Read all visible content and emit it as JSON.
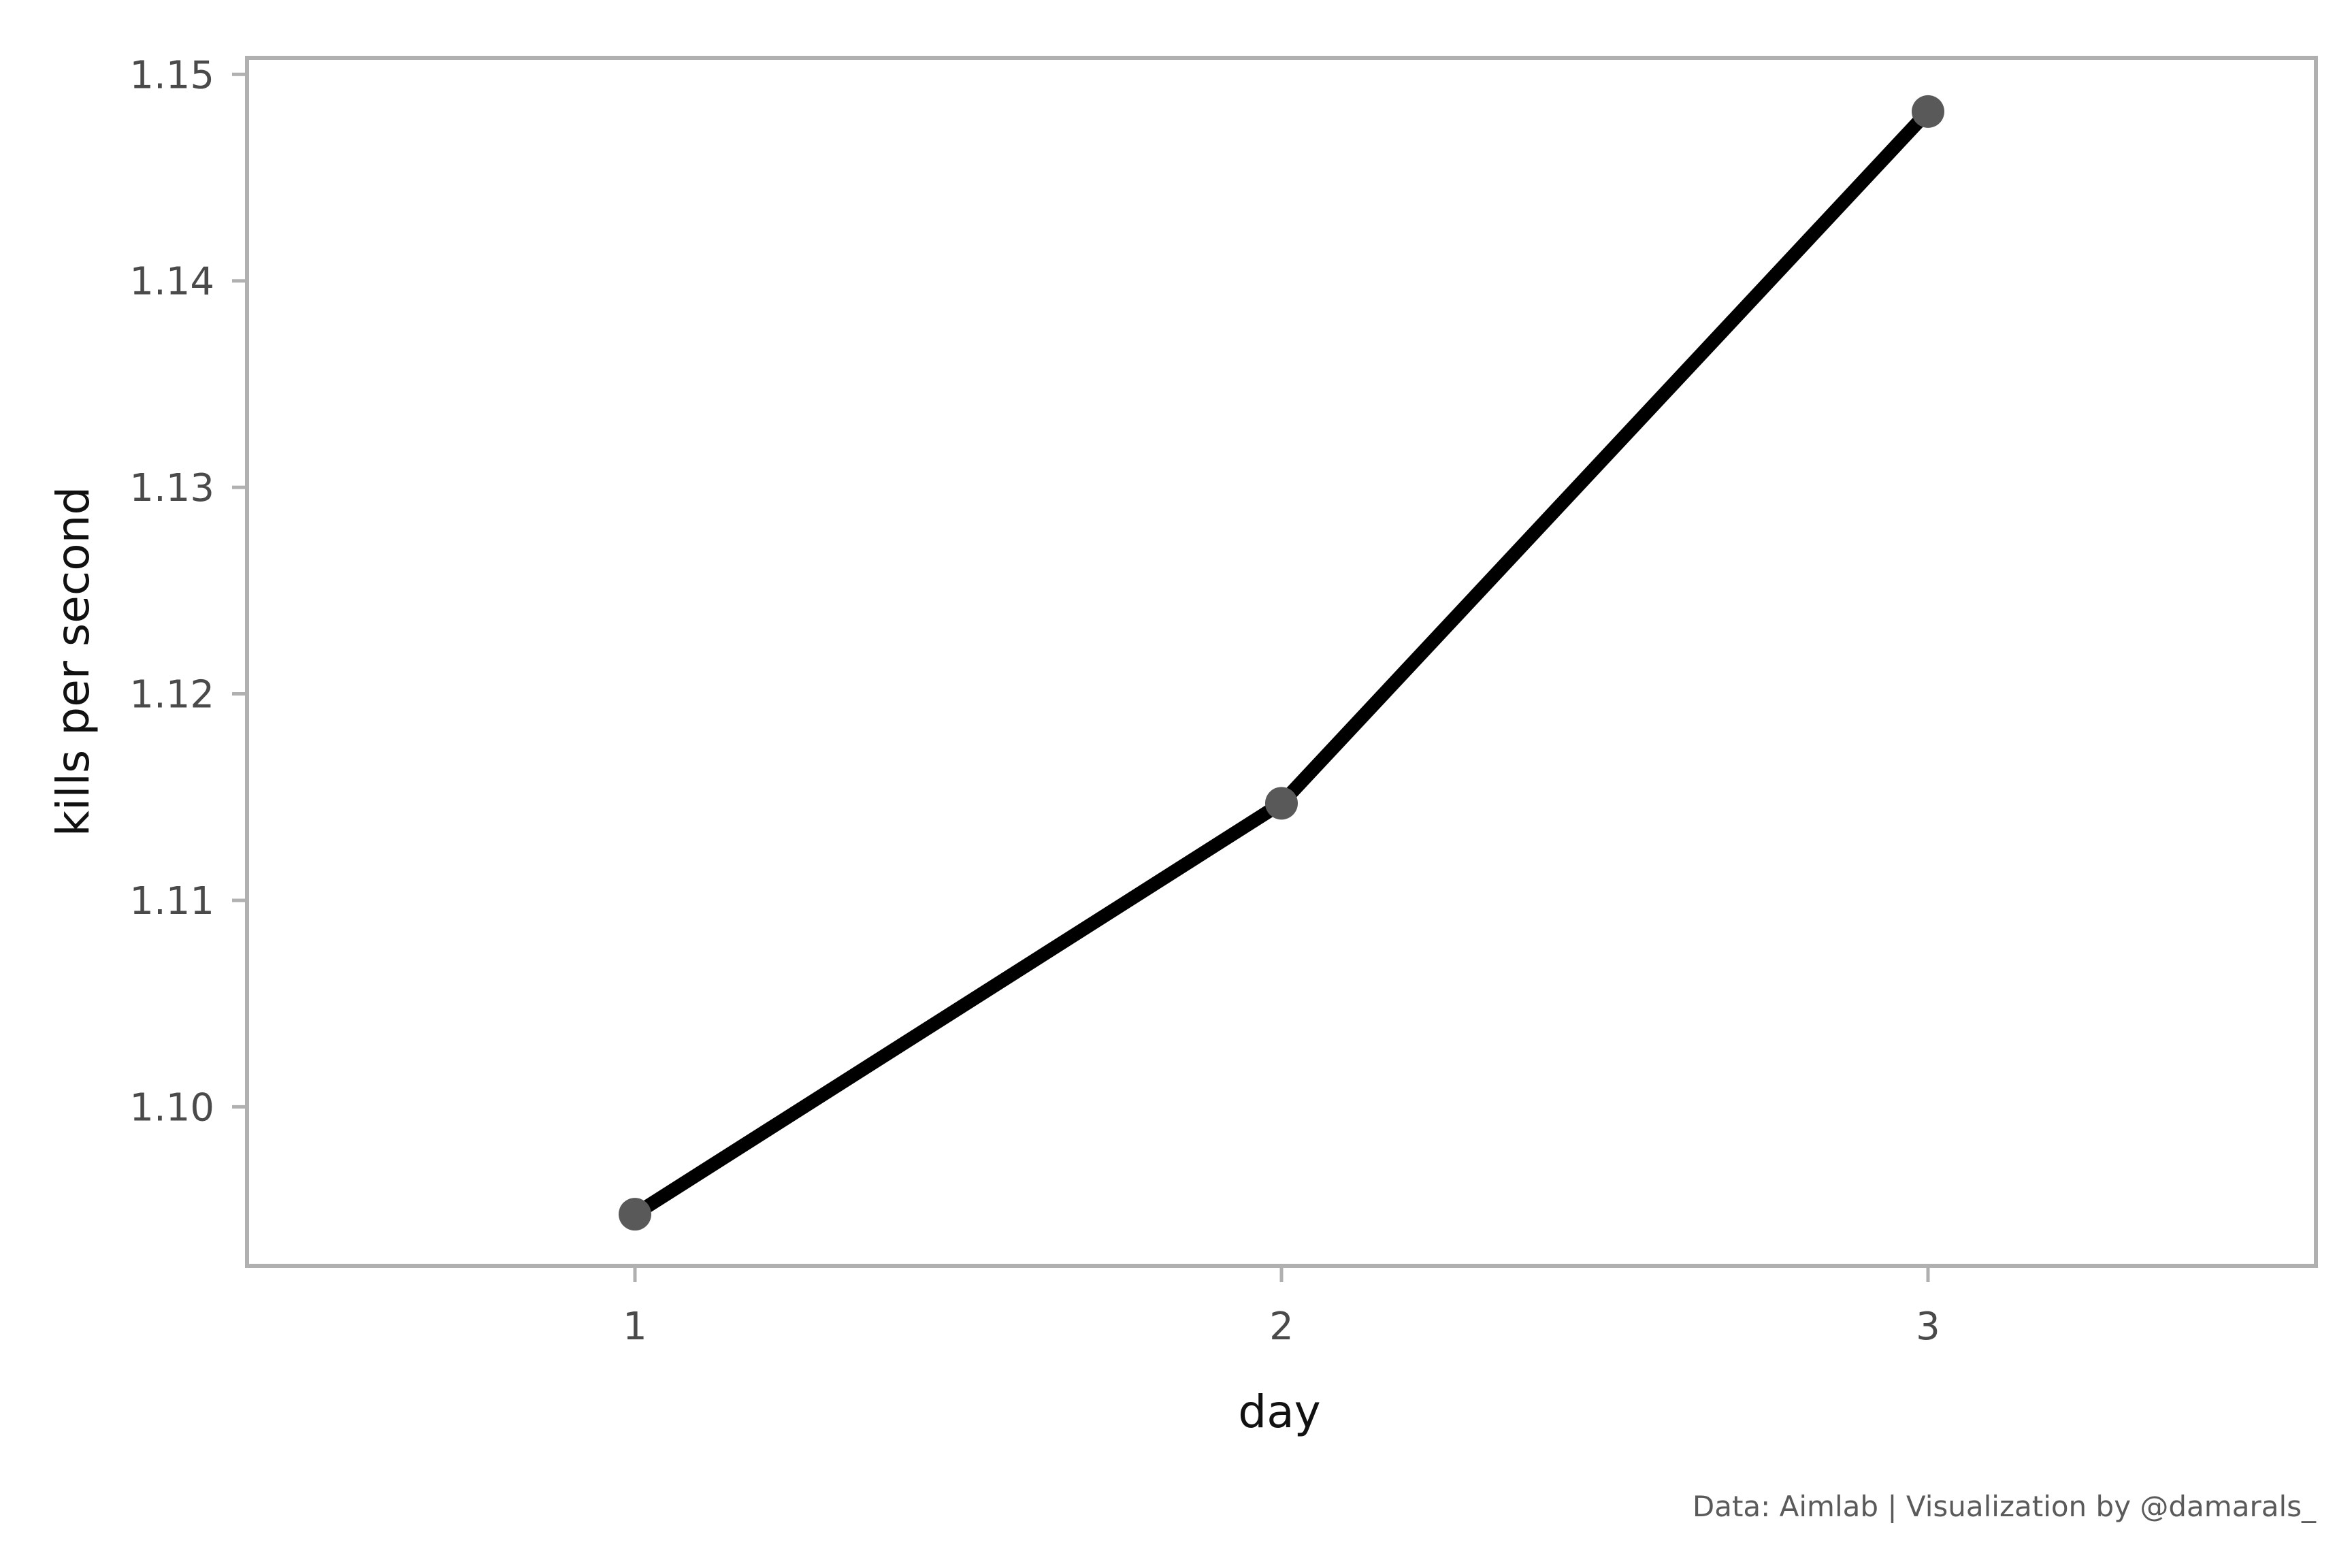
{
  "chart_data": {
    "type": "line",
    "title": "",
    "xlabel": "day",
    "ylabel": "kills per second",
    "x": [
      1,
      2,
      3
    ],
    "x_tick_labels": [
      "1",
      "2",
      "3"
    ],
    "series": [
      {
        "values": [
          1.0948,
          1.1147,
          1.1482
        ]
      }
    ],
    "xlim": [
      0.4,
      3.6
    ],
    "ylim": [
      1.0923,
      1.1508
    ],
    "y_ticks": [
      1.1,
      1.11,
      1.12,
      1.13,
      1.14,
      1.15
    ],
    "y_tick_labels": [
      "1.10",
      "1.11",
      "1.12",
      "1.13",
      "1.14",
      "1.15"
    ],
    "grid": false,
    "legend": "none",
    "line_color": "#000000",
    "marker_color": "#595959",
    "frame_color": "#b0b0b0",
    "caption": "Data: Aimlab | Visualization by @damarals_"
  }
}
